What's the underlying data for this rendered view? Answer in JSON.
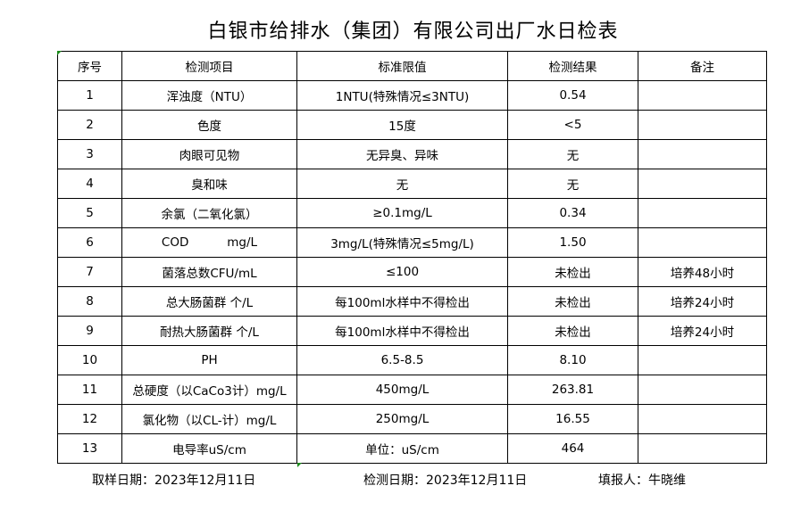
{
  "title": "白银市给排水（集团）有限公司出厂水日检表",
  "table": {
    "headers": [
      "序号",
      "检测项目",
      "标准限值",
      "检测结果",
      "备注"
    ],
    "rows": [
      [
        "1",
        "浑浊度（NTU）",
        "1NTU(特殊情况≤3NTU)",
        "0.54",
        ""
      ],
      [
        "2",
        "色度",
        "15度",
        "<5",
        ""
      ],
      [
        "3",
        "肉眼可见物",
        "无异臭、异味",
        "无",
        ""
      ],
      [
        "4",
        "臭和味",
        "无",
        "无",
        ""
      ],
      [
        "5",
        "余氯（二氧化氯）",
        "≥0.1mg/L",
        "0.34",
        ""
      ],
      [
        "6",
        "COD          mg/L",
        "3mg/L(特殊情况≤5mg/L)",
        "1.50",
        ""
      ],
      [
        "7",
        "菌落总数CFU/mL",
        "≤100",
        "未检出",
        "培养48小时"
      ],
      [
        "8",
        "总大肠菌群 个/L",
        "每100ml水样中不得检出",
        "未检出",
        "培养24小时"
      ],
      [
        "9",
        "耐热大肠菌群 个/L",
        "每100ml水样中不得检出",
        "未检出",
        "培养24小时"
      ],
      [
        "10",
        "PH",
        "6.5-8.5",
        "8.10",
        ""
      ],
      [
        "11",
        "总硬度（以CaCo3计）mg/L",
        "450mg/L",
        "263.81",
        ""
      ],
      [
        "12",
        "氯化物（以CL-计）mg/L",
        "250mg/L",
        "16.55",
        ""
      ],
      [
        "13",
        "电导率uS/cm",
        "单位：uS/cm",
        "464",
        ""
      ]
    ]
  },
  "footer": {
    "sampling_date": "取样日期：2023年12月11日",
    "test_date": "检测日期：2023年12月11日",
    "reporter": "填报人：牛晓维"
  }
}
